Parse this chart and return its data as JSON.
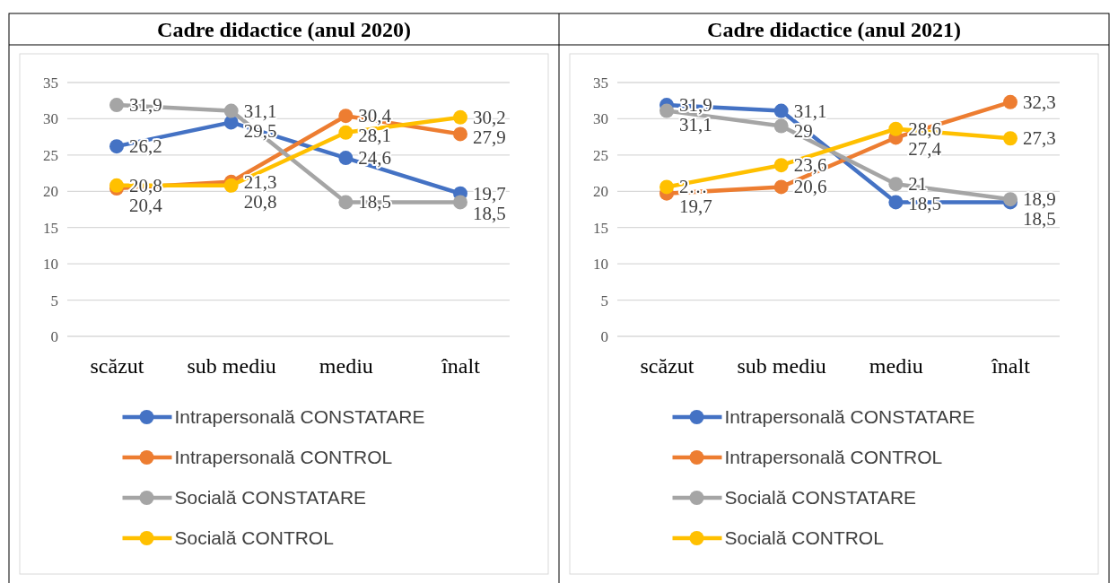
{
  "chart_data": [
    {
      "type": "line",
      "title": "Cadre didactice (anul 2020)",
      "categories": [
        "scăzut",
        "sub mediu",
        "mediu",
        "înalt"
      ],
      "ylim": [
        0,
        35
      ],
      "yticks": [
        0,
        5,
        10,
        15,
        20,
        25,
        30,
        35
      ],
      "grid": "y",
      "legend": "bottom",
      "marker": "circle",
      "series": [
        {
          "name": "Intrapersonală CONSTATARE",
          "color": "#4472c4",
          "values": [
            26.2,
            29.5,
            24.6,
            19.7
          ],
          "value_labels": [
            "26,2",
            "29,5",
            "24,6",
            "19,7"
          ]
        },
        {
          "name": "Intrapersonală CONTROL",
          "color": "#ed7d31",
          "values": [
            20.4,
            21.3,
            30.4,
            27.9
          ],
          "value_labels": [
            "20,4",
            "21,3",
            "30,4",
            "27,9"
          ]
        },
        {
          "name": "Socială CONSTATARE",
          "color": "#a5a5a5",
          "values": [
            31.9,
            31.1,
            18.5,
            18.5
          ],
          "value_labels": [
            "31,9",
            "31,1",
            "18,5",
            "18,5"
          ]
        },
        {
          "name": "Socială CONTROL",
          "color": "#ffc000",
          "values": [
            20.8,
            20.8,
            28.1,
            30.2
          ],
          "value_labels": [
            "20,8",
            "20,8",
            "28,1",
            "30,2"
          ]
        }
      ]
    },
    {
      "type": "line",
      "title": "Cadre didactice (anul 2021)",
      "categories": [
        "scăzut",
        "sub mediu",
        "mediu",
        "înalt"
      ],
      "ylim": [
        0,
        35
      ],
      "yticks": [
        0,
        5,
        10,
        15,
        20,
        25,
        30,
        35
      ],
      "grid": "y",
      "legend": "bottom",
      "marker": "circle",
      "series": [
        {
          "name": "Intrapersonală CONSTATARE",
          "color": "#4472c4",
          "values": [
            31.9,
            31.1,
            18.5,
            18.5
          ],
          "value_labels": [
            "31,9",
            "31,1",
            "18,5",
            "18,5"
          ]
        },
        {
          "name": "Intrapersonală CONTROL",
          "color": "#ed7d31",
          "values": [
            19.7,
            20.6,
            27.4,
            32.3
          ],
          "value_labels": [
            "19,7",
            "20,6",
            "27,4",
            "32,3"
          ]
        },
        {
          "name": "Socială CONSTATARE",
          "color": "#a5a5a5",
          "values": [
            31.1,
            29,
            21,
            18.9
          ],
          "value_labels": [
            "31,1",
            "29",
            "21",
            "18,9"
          ]
        },
        {
          "name": "Socială CONTROL",
          "color": "#ffc000",
          "values": [
            20.6,
            23.6,
            28.6,
            27.3
          ],
          "value_labels": [
            "2…",
            "23,6",
            "28,6",
            "27,3"
          ]
        }
      ]
    }
  ]
}
